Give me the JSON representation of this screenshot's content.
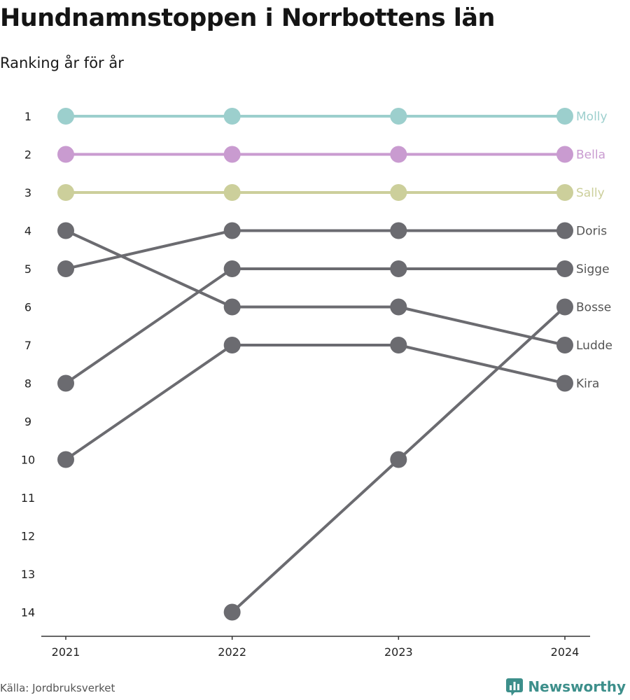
{
  "header": {
    "title": "Hundnamnstoppen i Norrbottens län",
    "subtitle": "Ranking år för år"
  },
  "footer": {
    "source": "Källa: Jordbruksverket",
    "brand": "Newsworthy"
  },
  "colors": {
    "Molly": "#9ccfcd",
    "Bella": "#c99bd0",
    "Sally": "#cccf9b",
    "default": "#6b6b70",
    "brand": "#3d8f8b"
  },
  "chart_data": {
    "type": "line",
    "x": [
      "2021",
      "2022",
      "2023",
      "2024"
    ],
    "ytick_labels": [
      "1",
      "2",
      "3",
      "4",
      "5",
      "6",
      "7",
      "8",
      "9",
      "10",
      "11",
      "12",
      "13",
      "14"
    ],
    "ylim": [
      1,
      14
    ],
    "y_inverted": true,
    "grid": false,
    "legend": "end-labels",
    "series": [
      {
        "name": "Molly",
        "values": [
          1,
          1,
          1,
          1
        ]
      },
      {
        "name": "Bella",
        "values": [
          2,
          2,
          2,
          2
        ]
      },
      {
        "name": "Sally",
        "values": [
          3,
          3,
          3,
          3
        ]
      },
      {
        "name": "Doris",
        "values": [
          5,
          4,
          4,
          4
        ]
      },
      {
        "name": "Sigge",
        "values": [
          8,
          5,
          5,
          5
        ]
      },
      {
        "name": "Bosse",
        "values": [
          null,
          14,
          10,
          6
        ]
      },
      {
        "name": "Ludde",
        "values": [
          4,
          6,
          6,
          7
        ]
      },
      {
        "name": "Kira",
        "values": [
          10,
          7,
          7,
          8
        ]
      }
    ]
  }
}
